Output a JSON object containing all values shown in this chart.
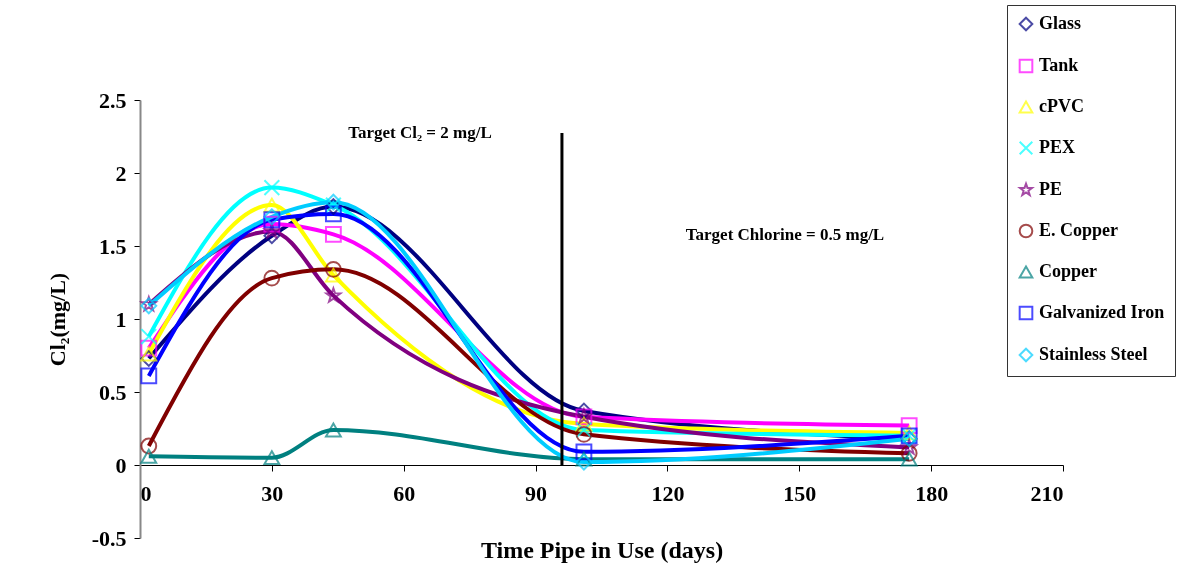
{
  "chart_data": {
    "type": "line",
    "xlabel": "Time Pipe in Use (days)",
    "ylabel": "Cl₂(mg/L)",
    "x": [
      2,
      30,
      44,
      101,
      175
    ],
    "series": [
      {
        "name": "Glass",
        "color": "#000080",
        "marker": "diamond",
        "values": [
          0.73,
          1.57,
          1.77,
          0.37,
          0.18
        ]
      },
      {
        "name": "Tank",
        "color": "#ff00ff",
        "marker": "square",
        "values": [
          0.8,
          1.65,
          1.58,
          0.33,
          0.27
        ]
      },
      {
        "name": "cPVC",
        "color": "#ffff00",
        "marker": "triangle",
        "values": [
          0.76,
          1.78,
          1.3,
          0.28,
          0.22
        ]
      },
      {
        "name": "PEX",
        "color": "#00ffff",
        "marker": "cross",
        "values": [
          0.88,
          1.9,
          1.78,
          0.24,
          0.2
        ]
      },
      {
        "name": "PE",
        "color": "#800080",
        "marker": "star",
        "values": [
          1.1,
          1.6,
          1.16,
          0.33,
          0.12
        ]
      },
      {
        "name": "E. Copper",
        "color": "#800000",
        "marker": "circle",
        "values": [
          0.13,
          1.28,
          1.34,
          0.21,
          0.08
        ]
      },
      {
        "name": "Copper",
        "color": "#008080",
        "marker": "triangle",
        "values": [
          0.06,
          0.05,
          0.24,
          0.04,
          0.04
        ]
      },
      {
        "name": "Galvanized Iron",
        "color": "#0000ff",
        "marker": "square",
        "values": [
          0.61,
          1.68,
          1.72,
          0.09,
          0.2
        ]
      },
      {
        "name": "Stainless Steel",
        "color": "#00ccff",
        "marker": "diamond",
        "values": [
          1.09,
          1.7,
          1.8,
          0.02,
          0.18
        ]
      }
    ],
    "xlim": [
      0,
      210
    ],
    "xticks": [
      0,
      30,
      60,
      90,
      120,
      150,
      180,
      210
    ],
    "ylim": [
      -0.5,
      2.5
    ],
    "yticks": [
      -0.5,
      0,
      0.5,
      1,
      1.5,
      2,
      2.5
    ],
    "ref_lines": [
      {
        "axis": "x",
        "value": 96,
        "color": "#000000"
      }
    ],
    "annotations": [
      "Target Cl₂ = 2 mg/L",
      "Target Chlorine = 0.5 mg/L"
    ],
    "legend": "top right",
    "grid": false,
    "line_style": "solid"
  }
}
